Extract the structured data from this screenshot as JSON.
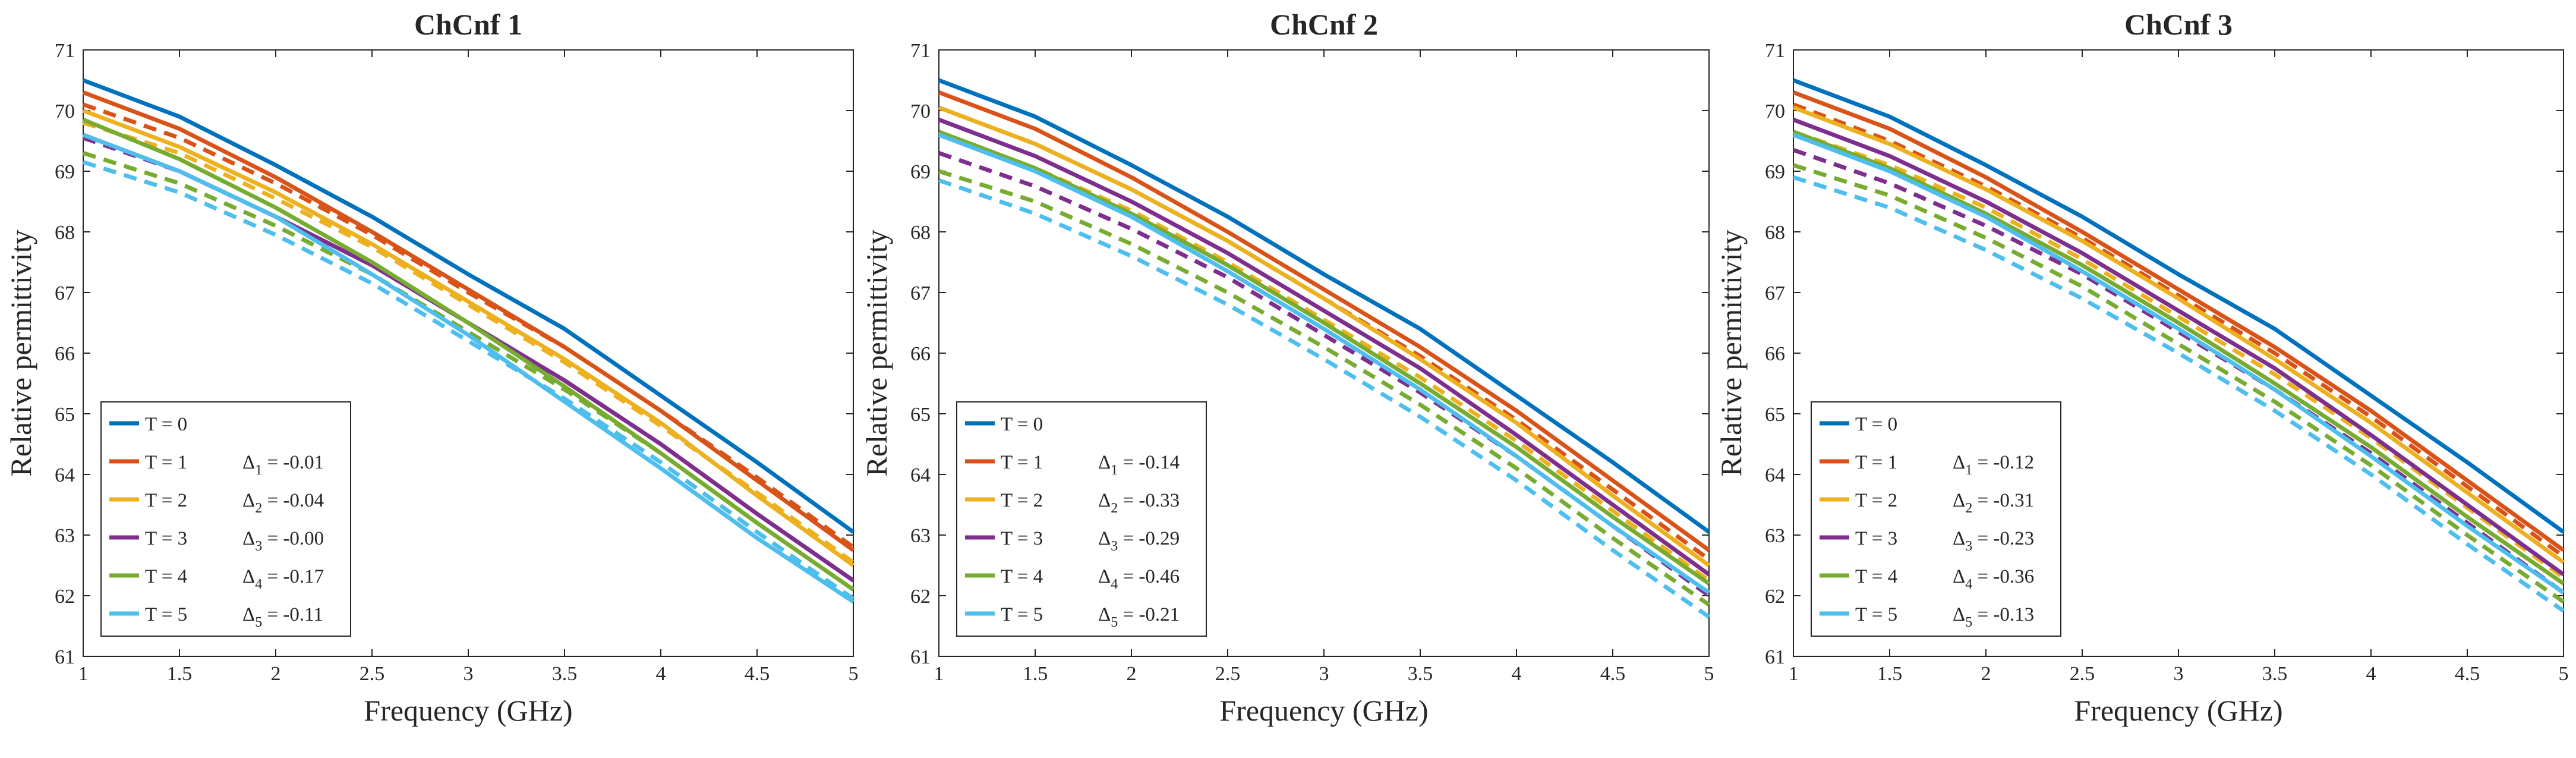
{
  "chart_data": [
    {
      "type": "line",
      "title": "ChCnf 1",
      "xlabel": "Frequency (GHz)",
      "ylabel": "Relative permittivity",
      "xlim": [
        1,
        5
      ],
      "ylim": [
        61,
        71
      ],
      "xticks": [
        "1",
        "1.5",
        "2",
        "2.5",
        "3",
        "3.5",
        "4",
        "4.5",
        "5"
      ],
      "yticks": [
        "61",
        "62",
        "63",
        "64",
        "65",
        "66",
        "67",
        "68",
        "69",
        "70",
        "71"
      ],
      "legend_position": "bottom-left",
      "x": [
        1,
        1.5,
        2,
        2.5,
        3,
        3.5,
        4,
        4.5,
        5
      ],
      "series": [
        {
          "name": "T = 0",
          "style": "solid",
          "color": "#0072BD",
          "values": [
            70.5,
            69.9,
            69.1,
            68.25,
            67.3,
            66.4,
            65.3,
            64.2,
            63.05
          ]
        },
        {
          "name": "T = 1",
          "style": "solid",
          "color": "#D95319",
          "values": [
            70.3,
            69.7,
            68.9,
            68.0,
            67.05,
            66.1,
            65.05,
            63.9,
            62.75
          ]
        },
        {
          "name": "T = 1",
          "style": "dashed",
          "color": "#D95319",
          "values": [
            70.1,
            69.55,
            68.8,
            67.95,
            67.0,
            66.1,
            65.05,
            63.95,
            62.8
          ]
        },
        {
          "name": "T = 2",
          "style": "solid",
          "color": "#EDB120",
          "values": [
            70.0,
            69.4,
            68.65,
            67.8,
            66.85,
            65.9,
            64.85,
            63.65,
            62.5
          ]
        },
        {
          "name": "T = 2",
          "style": "dashed",
          "color": "#EDB120",
          "values": [
            69.8,
            69.3,
            68.55,
            67.75,
            66.8,
            65.85,
            64.8,
            63.7,
            62.55
          ]
        },
        {
          "name": "T = 3",
          "style": "solid",
          "color": "#7E2F8E",
          "values": [
            69.6,
            69.0,
            68.25,
            67.45,
            66.5,
            65.55,
            64.5,
            63.35,
            62.25
          ]
        },
        {
          "name": "T = 3",
          "style": "dashed",
          "color": "#7E2F8E",
          "values": [
            69.55,
            69.0,
            68.25,
            67.45,
            66.5,
            65.55,
            64.5,
            63.35,
            62.25
          ]
        },
        {
          "name": "T = 4",
          "style": "solid",
          "color": "#77AC30",
          "values": [
            69.85,
            69.2,
            68.4,
            67.5,
            66.5,
            65.45,
            64.35,
            63.2,
            62.1
          ]
        },
        {
          "name": "T = 4",
          "style": "dashed",
          "color": "#77AC30",
          "values": [
            69.3,
            68.8,
            68.1,
            67.3,
            66.35,
            65.4,
            64.35,
            63.2,
            62.1
          ]
        },
        {
          "name": "T = 5",
          "style": "solid",
          "color": "#4DBEEE",
          "values": [
            69.6,
            69.0,
            68.25,
            67.3,
            66.3,
            65.2,
            64.1,
            62.95,
            61.9
          ]
        },
        {
          "name": "T = 5",
          "style": "dashed",
          "color": "#4DBEEE",
          "values": [
            69.15,
            68.65,
            67.95,
            67.15,
            66.2,
            65.25,
            64.2,
            63.05,
            61.95
          ]
        }
      ],
      "legend": [
        {
          "label": "T = 0",
          "delta_sym": "",
          "delta_sub": "",
          "delta_val": ""
        },
        {
          "label": "T = 1",
          "delta_sym": "Δ",
          "delta_sub": "1",
          "delta_val": " = -0.01"
        },
        {
          "label": "T = 2",
          "delta_sym": "Δ",
          "delta_sub": "2",
          "delta_val": " = -0.04"
        },
        {
          "label": "T = 3",
          "delta_sym": "Δ",
          "delta_sub": "3",
          "delta_val": " = -0.00"
        },
        {
          "label": "T = 4",
          "delta_sym": "Δ",
          "delta_sub": "4",
          "delta_val": " = -0.17"
        },
        {
          "label": "T = 5",
          "delta_sym": "Δ",
          "delta_sub": "5",
          "delta_val": " = -0.11"
        }
      ]
    },
    {
      "type": "line",
      "title": "ChCnf 2",
      "xlabel": "Frequency (GHz)",
      "ylabel": "Relative permittivity",
      "xlim": [
        1,
        5
      ],
      "ylim": [
        61,
        71
      ],
      "xticks": [
        "1",
        "1.5",
        "2",
        "2.5",
        "3",
        "3.5",
        "4",
        "4.5",
        "5"
      ],
      "yticks": [
        "61",
        "62",
        "63",
        "64",
        "65",
        "66",
        "67",
        "68",
        "69",
        "70",
        "71"
      ],
      "legend_position": "bottom-left",
      "x": [
        1,
        1.5,
        2,
        2.5,
        3,
        3.5,
        4,
        4.5,
        5
      ],
      "series": [
        {
          "name": "T = 0",
          "style": "solid",
          "color": "#0072BD",
          "values": [
            70.5,
            69.9,
            69.1,
            68.25,
            67.3,
            66.4,
            65.3,
            64.2,
            63.05
          ]
        },
        {
          "name": "T = 1",
          "style": "solid",
          "color": "#D95319",
          "values": [
            70.3,
            69.7,
            68.9,
            68.0,
            67.05,
            66.1,
            65.05,
            63.9,
            62.75
          ]
        },
        {
          "name": "T = 1",
          "style": "dashed",
          "color": "#D95319",
          "values": [
            70.05,
            69.45,
            68.7,
            67.85,
            66.9,
            65.95,
            64.9,
            63.75,
            62.6
          ]
        },
        {
          "name": "T = 2",
          "style": "solid",
          "color": "#EDB120",
          "values": [
            70.05,
            69.45,
            68.7,
            67.85,
            66.9,
            65.9,
            64.85,
            63.65,
            62.5
          ]
        },
        {
          "name": "T = 2",
          "style": "dashed",
          "color": "#EDB120",
          "values": [
            69.6,
            69.05,
            68.35,
            67.5,
            66.55,
            65.6,
            64.55,
            63.4,
            62.25
          ]
        },
        {
          "name": "T = 3",
          "style": "solid",
          "color": "#7E2F8E",
          "values": [
            69.85,
            69.25,
            68.5,
            67.65,
            66.7,
            65.75,
            64.65,
            63.5,
            62.35
          ]
        },
        {
          "name": "T = 3",
          "style": "dashed",
          "color": "#7E2F8E",
          "values": [
            69.3,
            68.75,
            68.05,
            67.25,
            66.3,
            65.35,
            64.3,
            63.15,
            62.0
          ]
        },
        {
          "name": "T = 4",
          "style": "solid",
          "color": "#77AC30",
          "values": [
            69.65,
            69.05,
            68.3,
            67.45,
            66.5,
            65.5,
            64.45,
            63.3,
            62.2
          ]
        },
        {
          "name": "T = 4",
          "style": "dashed",
          "color": "#77AC30",
          "values": [
            69.0,
            68.5,
            67.8,
            67.0,
            66.1,
            65.15,
            64.1,
            62.95,
            61.85
          ]
        },
        {
          "name": "T = 5",
          "style": "solid",
          "color": "#4DBEEE",
          "values": [
            69.6,
            69.0,
            68.25,
            67.35,
            66.4,
            65.4,
            64.3,
            63.15,
            62.05
          ]
        },
        {
          "name": "T = 5",
          "style": "dashed",
          "color": "#4DBEEE",
          "values": [
            68.85,
            68.3,
            67.6,
            66.8,
            65.9,
            64.95,
            63.9,
            62.75,
            61.65
          ]
        }
      ],
      "legend": [
        {
          "label": "T = 0",
          "delta_sym": "",
          "delta_sub": "",
          "delta_val": ""
        },
        {
          "label": "T = 1",
          "delta_sym": "Δ",
          "delta_sub": "1",
          "delta_val": " = -0.14"
        },
        {
          "label": "T = 2",
          "delta_sym": "Δ",
          "delta_sub": "2",
          "delta_val": " = -0.33"
        },
        {
          "label": "T = 3",
          "delta_sym": "Δ",
          "delta_sub": "3",
          "delta_val": " = -0.29"
        },
        {
          "label": "T = 4",
          "delta_sym": "Δ",
          "delta_sub": "4",
          "delta_val": " = -0.46"
        },
        {
          "label": "T = 5",
          "delta_sym": "Δ",
          "delta_sub": "5",
          "delta_val": " = -0.21"
        }
      ]
    },
    {
      "type": "line",
      "title": "ChCnf 3",
      "xlabel": "Frequency (GHz)",
      "ylabel": "Relative permittivity",
      "xlim": [
        1,
        5
      ],
      "ylim": [
        61,
        71
      ],
      "xticks": [
        "1",
        "1.5",
        "2",
        "2.5",
        "3",
        "3.5",
        "4",
        "4.5",
        "5"
      ],
      "yticks": [
        "61",
        "62",
        "63",
        "64",
        "65",
        "66",
        "67",
        "68",
        "69",
        "70",
        "71"
      ],
      "legend_position": "bottom-left",
      "x": [
        1,
        1.5,
        2,
        2.5,
        3,
        3.5,
        4,
        4.5,
        5
      ],
      "series": [
        {
          "name": "T = 0",
          "style": "solid",
          "color": "#0072BD",
          "values": [
            70.5,
            69.9,
            69.1,
            68.25,
            67.3,
            66.4,
            65.3,
            64.2,
            63.05
          ]
        },
        {
          "name": "T = 1",
          "style": "solid",
          "color": "#D95319",
          "values": [
            70.3,
            69.7,
            68.9,
            68.0,
            67.05,
            66.1,
            65.05,
            63.9,
            62.75
          ]
        },
        {
          "name": "T = 1",
          "style": "dashed",
          "color": "#D95319",
          "values": [
            70.1,
            69.5,
            68.75,
            67.9,
            66.95,
            66.0,
            64.95,
            63.8,
            62.65
          ]
        },
        {
          "name": "T = 2",
          "style": "solid",
          "color": "#EDB120",
          "values": [
            70.05,
            69.45,
            68.7,
            67.85,
            66.9,
            65.9,
            64.85,
            63.7,
            62.55
          ]
        },
        {
          "name": "T = 2",
          "style": "dashed",
          "color": "#EDB120",
          "values": [
            69.65,
            69.1,
            68.4,
            67.55,
            66.6,
            65.65,
            64.6,
            63.45,
            62.3
          ]
        },
        {
          "name": "T = 3",
          "style": "solid",
          "color": "#7E2F8E",
          "values": [
            69.85,
            69.25,
            68.5,
            67.65,
            66.7,
            65.75,
            64.65,
            63.5,
            62.35
          ]
        },
        {
          "name": "T = 3",
          "style": "dashed",
          "color": "#7E2F8E",
          "values": [
            69.35,
            68.8,
            68.1,
            67.3,
            66.35,
            65.4,
            64.35,
            63.2,
            62.05
          ]
        },
        {
          "name": "T = 4",
          "style": "solid",
          "color": "#77AC30",
          "values": [
            69.65,
            69.05,
            68.3,
            67.45,
            66.5,
            65.5,
            64.45,
            63.3,
            62.2
          ]
        },
        {
          "name": "T = 4",
          "style": "dashed",
          "color": "#77AC30",
          "values": [
            69.1,
            68.6,
            67.9,
            67.1,
            66.15,
            65.2,
            64.15,
            63.0,
            61.9
          ]
        },
        {
          "name": "T = 5",
          "style": "solid",
          "color": "#4DBEEE",
          "values": [
            69.6,
            69.0,
            68.25,
            67.35,
            66.4,
            65.4,
            64.3,
            63.15,
            62.05
          ]
        },
        {
          "name": "T = 5",
          "style": "dashed",
          "color": "#4DBEEE",
          "values": [
            68.9,
            68.4,
            67.7,
            66.9,
            66.0,
            65.05,
            64.0,
            62.85,
            61.75
          ]
        }
      ],
      "legend": [
        {
          "label": "T = 0",
          "delta_sym": "",
          "delta_sub": "",
          "delta_val": ""
        },
        {
          "label": "T = 1",
          "delta_sym": "Δ",
          "delta_sub": "1",
          "delta_val": " = -0.12"
        },
        {
          "label": "T = 2",
          "delta_sym": "Δ",
          "delta_sub": "2",
          "delta_val": " = -0.31"
        },
        {
          "label": "T = 3",
          "delta_sym": "Δ",
          "delta_sub": "3",
          "delta_val": " = -0.23"
        },
        {
          "label": "T = 4",
          "delta_sym": "Δ",
          "delta_sub": "4",
          "delta_val": " = -0.36"
        },
        {
          "label": "T = 5",
          "delta_sym": "Δ",
          "delta_sub": "5",
          "delta_val": " = -0.13"
        }
      ]
    }
  ]
}
